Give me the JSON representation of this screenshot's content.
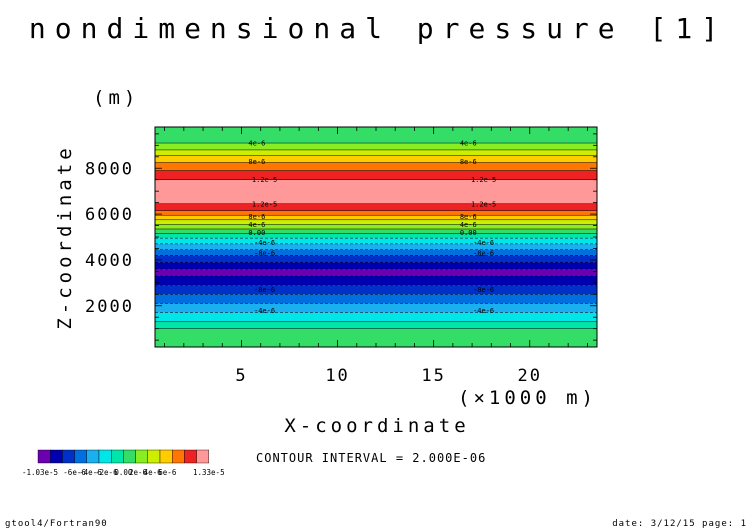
{
  "chart_data": {
    "type": "heatmap",
    "title": "nondimensional pressure [1]",
    "xlabel": "X-coordinate",
    "ylabel": "Z-coordinate",
    "x_unit": "(×1000 m)",
    "y_unit": "(m)",
    "xlim": [
      0.5,
      23.5
    ],
    "ylim": [
      200,
      9800
    ],
    "x_ticks": [
      5,
      10,
      15,
      20
    ],
    "x_tick_labels": [
      "5",
      "10",
      "15",
      "20"
    ],
    "y_ticks": [
      2000,
      4000,
      6000,
      8000
    ],
    "y_tick_labels": [
      "2000",
      "4000",
      "6000",
      "8000"
    ],
    "contour_interval_text": "CONTOUR INTERVAL = 2.000E-06",
    "bands": [
      {
        "z0": 200,
        "z1": 1000,
        "color": "#33dd66"
      },
      {
        "z0": 1000,
        "z1": 1300,
        "color": "#00e6a8"
      },
      {
        "z0": 1300,
        "z1": 1700,
        "color": "#00e6e6"
      },
      {
        "z0": 1700,
        "z1": 2100,
        "color": "#1ab0f0"
      },
      {
        "z0": 2100,
        "z1": 2500,
        "color": "#0070e0"
      },
      {
        "z0": 2500,
        "z1": 2900,
        "color": "#0030c8"
      },
      {
        "z0": 2900,
        "z1": 3300,
        "color": "#0000b0"
      },
      {
        "z0": 3300,
        "z1": 3600,
        "color": "#6a00b0"
      },
      {
        "z0": 3600,
        "z1": 3900,
        "color": "#0000b0"
      },
      {
        "z0": 3900,
        "z1": 4200,
        "color": "#0030c8"
      },
      {
        "z0": 4200,
        "z1": 4450,
        "color": "#0070e0"
      },
      {
        "z0": 4450,
        "z1": 4700,
        "color": "#1ab0f0"
      },
      {
        "z0": 4700,
        "z1": 4950,
        "color": "#00e6e6"
      },
      {
        "z0": 4950,
        "z1": 5150,
        "color": "#00e6a8"
      },
      {
        "z0": 5150,
        "z1": 5350,
        "color": "#33dd66"
      },
      {
        "z0": 5350,
        "z1": 5550,
        "color": "#88ee22"
      },
      {
        "z0": 5550,
        "z1": 5750,
        "color": "#ccee00"
      },
      {
        "z0": 5750,
        "z1": 5950,
        "color": "#ffcc00"
      },
      {
        "z0": 5950,
        "z1": 6150,
        "color": "#ff7700"
      },
      {
        "z0": 6150,
        "z1": 6450,
        "color": "#ee2222"
      },
      {
        "z0": 6450,
        "z1": 7500,
        "color": "#ff9999"
      },
      {
        "z0": 7500,
        "z1": 7900,
        "color": "#ee2222"
      },
      {
        "z0": 7900,
        "z1": 8250,
        "color": "#ff7700"
      },
      {
        "z0": 8250,
        "z1": 8550,
        "color": "#ffcc00"
      },
      {
        "z0": 8550,
        "z1": 8800,
        "color": "#ccee00"
      },
      {
        "z0": 8800,
        "z1": 9100,
        "color": "#88ee22"
      },
      {
        "z0": 9100,
        "z1": 9800,
        "color": "#33dd66"
      }
    ],
    "contour_labels": [
      {
        "z": 9100,
        "text": "4e-6",
        "x": [
          5.8,
          16.8
        ]
      },
      {
        "z": 8300,
        "text": "8e-6",
        "x": [
          5.8,
          16.8
        ]
      },
      {
        "z": 7500,
        "text": "1.2e-5",
        "x": [
          6.2,
          17.6
        ]
      },
      {
        "z": 6450,
        "text": "1.2e-5",
        "x": [
          6.2,
          17.6
        ]
      },
      {
        "z": 5900,
        "text": "8e-6",
        "x": [
          5.8,
          16.8
        ]
      },
      {
        "z": 5550,
        "text": "4e-6",
        "x": [
          5.8,
          16.8
        ]
      },
      {
        "z": 5200,
        "text": "0.00",
        "x": [
          5.8,
          16.8
        ]
      },
      {
        "z": 4750,
        "text": "-4e-6",
        "x": [
          6.2,
          17.6
        ]
      },
      {
        "z": 4300,
        "text": "-8e-6",
        "x": [
          6.2,
          17.6
        ]
      },
      {
        "z": 2700,
        "text": "-8e-6",
        "x": [
          6.2,
          17.6
        ]
      },
      {
        "z": 1800,
        "text": "-4e-6",
        "x": [
          6.2,
          17.6
        ]
      }
    ],
    "colorbar": {
      "colors": [
        "#6a00b0",
        "#0000b0",
        "#0030c8",
        "#0070e0",
        "#1ab0f0",
        "#00e6e6",
        "#00e6a8",
        "#33dd66",
        "#88ee22",
        "#ccee00",
        "#ffcc00",
        "#ff7700",
        "#ee2222",
        "#ff9999"
      ],
      "labels": [
        "-1.03e-5",
        "-6e-6",
        "-4e-6",
        "-2e-6",
        "0.00",
        "2e-6",
        "4e-6",
        "6e-6",
        "1.33e-5"
      ]
    }
  },
  "footer": {
    "left": "gtool4/Fortran90",
    "right": "date: 3/12/15 page: 1"
  }
}
